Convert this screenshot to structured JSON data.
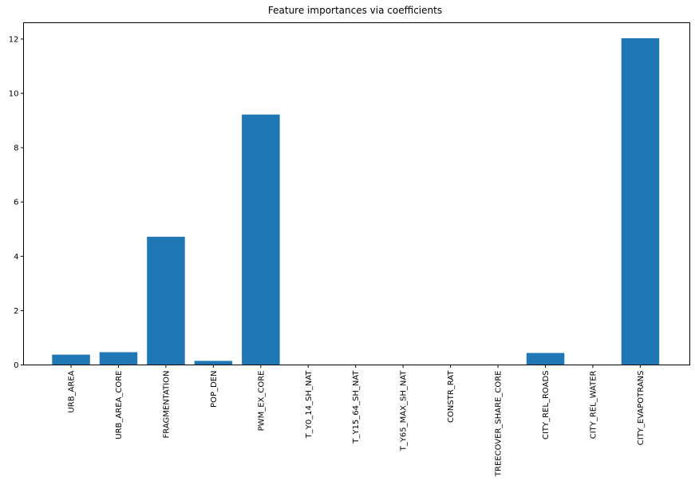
{
  "chart_data": {
    "type": "bar",
    "title": "Feature importances via coefficients",
    "xlabel": "",
    "ylabel": "",
    "categories": [
      "URB_AREA",
      "URB_AREA_CORE",
      "FRAGMENTATION",
      "POP_DEN",
      "PWM_EX_CORE",
      "T_Y0_14_SH_NAT",
      "T_Y15_64_SH_NAT",
      "T_Y65_MAX_SH_NAT",
      "CONSTR_RAT",
      "TREECOVER_SHARE_CORE",
      "CITY_REL_ROADS",
      "CITY_REL_WATER",
      "CITY_EVAPOTRANS"
    ],
    "values": [
      0.38,
      0.47,
      4.72,
      0.15,
      9.22,
      0.0,
      0.0,
      0.0,
      0.0,
      0.0,
      0.44,
      0.0,
      12.03
    ],
    "ylim": [
      0,
      12.6
    ],
    "yticks": [
      "0",
      "2",
      "4",
      "6",
      "8",
      "10",
      "12"
    ],
    "grid": false,
    "bar_color": "#1f77b4",
    "axis_color": "#000000"
  }
}
